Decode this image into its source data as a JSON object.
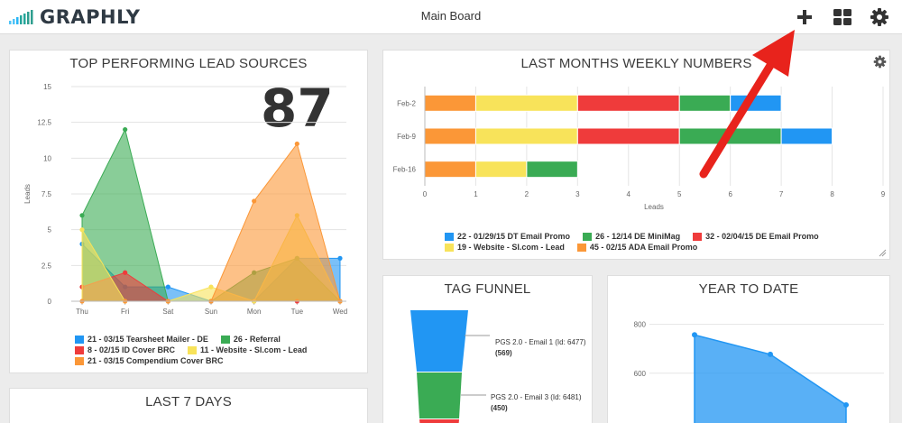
{
  "app": {
    "name": "GRAPHLY",
    "board_title": "Main Board"
  },
  "toolbar": {
    "icons": [
      "plus-icon",
      "grid-icon",
      "gear-icon"
    ]
  },
  "annotation": {
    "arrow_color": "#e8231c"
  },
  "colors": {
    "blue": "#2196f3",
    "green": "#3aab54",
    "red": "#ef3b3b",
    "yellow": "#f8e35a",
    "orange": "#fb9737"
  },
  "panels": {
    "lead_sources": {
      "title": "TOP PERFORMING LEAD SOURCES",
      "big_number": "87",
      "legend": [
        {
          "label": "21 - 03/15 Tearsheet Mailer - DE",
          "color": "#2196f3"
        },
        {
          "label": "26 - Referral",
          "color": "#3aab54"
        },
        {
          "label": "8 - 02/15 ID Cover BRC",
          "color": "#ef3b3b"
        },
        {
          "label": "11 - Website - SI.com - Lead",
          "color": "#f8e35a"
        },
        {
          "label": "21 - 03/15 Compendium Cover BRC",
          "color": "#fb9737"
        }
      ]
    },
    "weekly": {
      "title": "LAST MONTHS WEEKLY NUMBERS",
      "legend": [
        {
          "label": "22 - 01/29/15 DT Email Promo",
          "color": "#2196f3"
        },
        {
          "label": "26 - 12/14 DE MiniMag",
          "color": "#3aab54"
        },
        {
          "label": "32 - 02/04/15 DE Email Promo",
          "color": "#ef3b3b"
        },
        {
          "label": "19 - Website - SI.com - Lead",
          "color": "#f8e35a"
        },
        {
          "label": "45 - 02/15 ADA Email Promo",
          "color": "#fb9737"
        }
      ]
    },
    "tag_funnel": {
      "title": "TAG FUNNEL",
      "stages": [
        {
          "label": "PGS 2.0 - Email 1 (Id: 6477)",
          "count": "(569)",
          "color": "#2196f3"
        },
        {
          "label": "PGS 2.0 - Email 3 (Id: 6481)",
          "count": "(450)",
          "color": "#3aab54"
        },
        {
          "label": "",
          "count": "",
          "color": "#ef3b3b"
        }
      ]
    },
    "year_to_date": {
      "title": "YEAR TO DATE"
    },
    "last7": {
      "title": "LAST 7 DAYS"
    }
  },
  "chart_data": [
    {
      "type": "area",
      "title": "TOP PERFORMING LEAD SOURCES",
      "xlabel": "",
      "ylabel": "Leads",
      "ylim": [
        0,
        15
      ],
      "yticks": [
        0,
        2.5,
        5,
        7.5,
        10,
        12.5,
        15
      ],
      "ytick_labels": [
        "0",
        "2.5",
        "5",
        "7.5",
        "10",
        "12.5",
        "15"
      ],
      "categories": [
        "Thu",
        "Fri",
        "Sat",
        "Sun",
        "Mon",
        "Tue",
        "Wed"
      ],
      "series": [
        {
          "name": "21 - 03/15 Tearsheet Mailer - DE",
          "color": "#2196f3",
          "values": [
            4,
            1,
            1,
            0,
            0,
            3,
            3
          ]
        },
        {
          "name": "26 - Referral",
          "color": "#3aab54",
          "values": [
            6,
            12,
            0,
            0,
            2,
            3,
            0
          ]
        },
        {
          "name": "8 - 02/15 ID Cover BRC",
          "color": "#ef3b3b",
          "values": [
            1,
            2,
            0,
            0,
            0,
            0,
            0
          ]
        },
        {
          "name": "11 - Website - SI.com - Lead",
          "color": "#f8e35a",
          "values": [
            5,
            0,
            0,
            1,
            0,
            6,
            0
          ]
        },
        {
          "name": "21 - 03/15 Compendium Cover BRC",
          "color": "#fb9737",
          "values": [
            0,
            0,
            0,
            0,
            7,
            11,
            0
          ]
        }
      ]
    },
    {
      "type": "bar",
      "orientation": "horizontal",
      "stacked": true,
      "title": "LAST MONTHS WEEKLY NUMBERS",
      "xlabel": "Leads",
      "xlim": [
        0,
        9
      ],
      "xticks": [
        0,
        1,
        2,
        3,
        4,
        5,
        6,
        7,
        8,
        9
      ],
      "categories": [
        "Feb-2",
        "Feb-9",
        "Feb-16"
      ],
      "series": [
        {
          "name": "45 - 02/15 ADA Email Promo",
          "color": "#fb9737",
          "values": [
            1,
            1,
            1
          ]
        },
        {
          "name": "19 - Website - SI.com - Lead",
          "color": "#f8e35a",
          "values": [
            2,
            2,
            1
          ]
        },
        {
          "name": "32 - 02/04/15 DE Email Promo",
          "color": "#ef3b3b",
          "values": [
            2,
            2,
            0
          ]
        },
        {
          "name": "26 - 12/14 DE MiniMag",
          "color": "#3aab54",
          "values": [
            1,
            2,
            1
          ]
        },
        {
          "name": "22 - 01/29/15 DT Email Promo",
          "color": "#2196f3",
          "values": [
            1,
            1,
            0
          ]
        }
      ]
    },
    {
      "type": "area",
      "title": "YEAR TO DATE",
      "yticks": [
        600,
        800
      ],
      "ytick_labels": [
        "600",
        "800"
      ],
      "ylim": [
        370,
        880
      ],
      "series": [
        {
          "color": "#2196f3",
          "values": [
            757,
            677,
            470
          ]
        }
      ]
    }
  ]
}
